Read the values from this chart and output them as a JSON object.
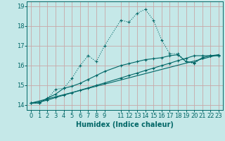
{
  "xlabel": "Humidex (Indice chaleur)",
  "background_color": "#c5e8e8",
  "grid_color": "#c8a8a8",
  "line_color": "#006666",
  "xlim": [
    -0.5,
    23.5
  ],
  "ylim": [
    13.75,
    19.25
  ],
  "xticks": [
    0,
    1,
    2,
    3,
    4,
    5,
    6,
    7,
    8,
    9,
    11,
    12,
    13,
    14,
    15,
    16,
    17,
    18,
    19,
    20,
    21,
    22,
    23
  ],
  "yticks": [
    14,
    15,
    16,
    17,
    18,
    19
  ],
  "line1_x": [
    0,
    1,
    2,
    3,
    4,
    5,
    6,
    7,
    8,
    9,
    11,
    12,
    13,
    14,
    15,
    16,
    17,
    18,
    19,
    20,
    21,
    22,
    23
  ],
  "line1_y": [
    14.1,
    14.1,
    14.3,
    14.8,
    14.85,
    15.35,
    16.0,
    16.5,
    16.2,
    17.0,
    18.3,
    18.2,
    18.65,
    18.85,
    18.3,
    17.3,
    16.6,
    16.6,
    16.2,
    16.1,
    16.4,
    16.5,
    16.5
  ],
  "line2_x": [
    0,
    1,
    2,
    3,
    4,
    5,
    6,
    7,
    8,
    9,
    11,
    12,
    13,
    14,
    15,
    16,
    17,
    18,
    19,
    20,
    21,
    22,
    23
  ],
  "line2_y": [
    14.1,
    14.1,
    14.35,
    14.55,
    14.85,
    14.95,
    15.1,
    15.3,
    15.5,
    15.7,
    16.0,
    16.1,
    16.2,
    16.3,
    16.35,
    16.4,
    16.5,
    16.55,
    16.2,
    16.15,
    16.4,
    16.5,
    16.5
  ],
  "line3_x": [
    0,
    1,
    2,
    3,
    4,
    5,
    6,
    7,
    8,
    9,
    11,
    12,
    13,
    14,
    15,
    16,
    17,
    18,
    19,
    20,
    21,
    22,
    23
  ],
  "line3_y": [
    14.1,
    14.15,
    14.25,
    14.38,
    14.5,
    14.62,
    14.75,
    14.87,
    15.0,
    15.12,
    15.37,
    15.5,
    15.62,
    15.75,
    15.87,
    16.0,
    16.12,
    16.25,
    16.37,
    16.5,
    16.5,
    16.5,
    16.55
  ],
  "line4_x": [
    0,
    23
  ],
  "line4_y": [
    14.1,
    16.55
  ],
  "xlabel_fontsize": 7,
  "tick_fontsize": 6
}
